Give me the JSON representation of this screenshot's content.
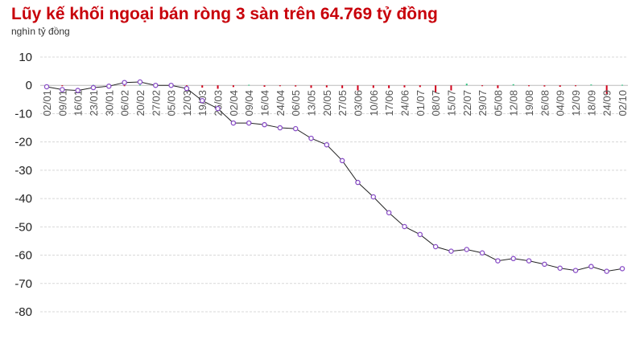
{
  "chart_data": {
    "type": "line",
    "title": "Lũy kế khối ngoại bán ròng 3 sàn trên 64.769 tỷ đồng",
    "subtitle": "nghìn tỷ đồng",
    "xlabel": "",
    "ylabel": "",
    "ylim": [
      -80,
      10
    ],
    "yticks": [
      10,
      0,
      -10,
      -20,
      -30,
      -40,
      -50,
      -60,
      -70,
      -80
    ],
    "grid": true,
    "legend": "none",
    "categories": [
      "02/01",
      "09/01",
      "16/01",
      "23/01",
      "30/01",
      "06/02",
      "20/02",
      "27/02",
      "05/03",
      "12/03",
      "19/03",
      "26/03",
      "02/04",
      "09/04",
      "16/04",
      "24/04",
      "06/05",
      "13/05",
      "20/05",
      "27/05",
      "03/06",
      "10/06",
      "17/06",
      "24/06",
      "01/07",
      "08/07",
      "15/07",
      "22/07",
      "29/07",
      "05/08",
      "12/08",
      "19/08",
      "26/08",
      "04/09",
      "12/09",
      "18/09",
      "24/09",
      "02/10"
    ],
    "series": [
      {
        "type": "line",
        "values": [
          -0.5,
          -1.5,
          -1.8,
          -0.8,
          -0.3,
          1.0,
          1.2,
          0.0,
          0.0,
          -1.1,
          -5.4,
          -8.2,
          -13.3,
          -13.3,
          -13.9,
          -15.0,
          -15.3,
          -18.7,
          -21.0,
          -26.6,
          -34.3,
          -39.4,
          -45.0,
          -49.9,
          -52.7,
          -57.0,
          -58.6,
          -58.0,
          -59.2,
          -62.0,
          -61.2,
          -62.0,
          -63.2,
          -64.6,
          -65.4,
          -64.0,
          -65.7,
          -64.769
        ]
      },
      {
        "type": "bar",
        "values": [
          -0.2,
          -0.1,
          0,
          0.2,
          -0.3,
          -0.2,
          0.2,
          -0.6,
          -0.2,
          -0.4,
          -0.8,
          -1.2,
          -0.6,
          0.2,
          -0.5,
          -0.3,
          -0.4,
          -0.9,
          -0.7,
          -1.0,
          -1.8,
          -0.9,
          -1.0,
          -0.7,
          -0.6,
          -2.5,
          -1.8,
          0.6,
          -0.2,
          -1.0,
          0.4,
          -0.3,
          -0.4,
          -0.5,
          -0.3,
          0.3,
          -3.0,
          0.2
        ]
      }
    ],
    "colors": {
      "line": "#222222",
      "marker": "#8a4fc7",
      "bar_negative": "#d0021b",
      "bar_positive": "#2ec27e",
      "title": "#c8000a"
    }
  }
}
